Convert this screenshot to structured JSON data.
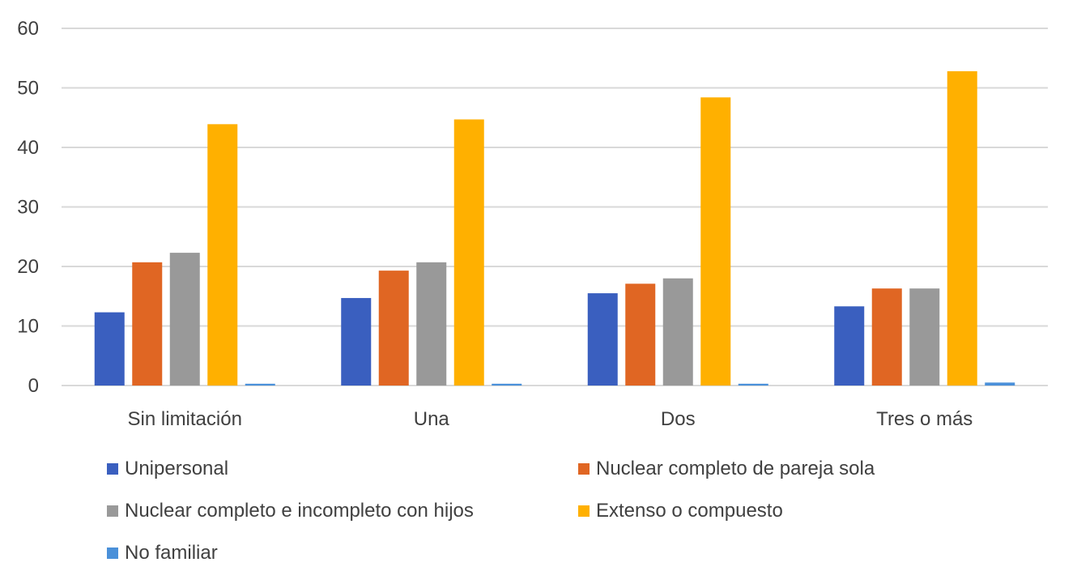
{
  "chart_data": {
    "type": "bar",
    "title": "",
    "xlabel": "",
    "ylabel": "",
    "ylim": [
      0,
      60
    ],
    "yticks": [
      0,
      10,
      20,
      30,
      40,
      50,
      60
    ],
    "grid": true,
    "legend_position": "bottom",
    "categories": [
      "Sin limitación",
      "Una",
      "Dos",
      "Tres o más"
    ],
    "series": [
      {
        "name": "Unipersonal",
        "color": "#3A5FBF",
        "values": [
          12.3,
          14.7,
          15.5,
          13.3
        ]
      },
      {
        "name": "Nuclear completo de pareja sola",
        "color": "#E06623",
        "values": [
          20.7,
          19.3,
          17.1,
          16.3
        ]
      },
      {
        "name": "Nuclear completo e incompleto con hijos",
        "color": "#999999",
        "values": [
          22.3,
          20.7,
          18.0,
          16.3
        ]
      },
      {
        "name": "Extenso o compuesto",
        "color": "#FFB000",
        "values": [
          43.9,
          44.7,
          48.4,
          52.8
        ]
      },
      {
        "name": "No familiar",
        "color": "#4A90D9",
        "values": [
          0.3,
          0.3,
          0.3,
          0.5
        ]
      }
    ]
  }
}
